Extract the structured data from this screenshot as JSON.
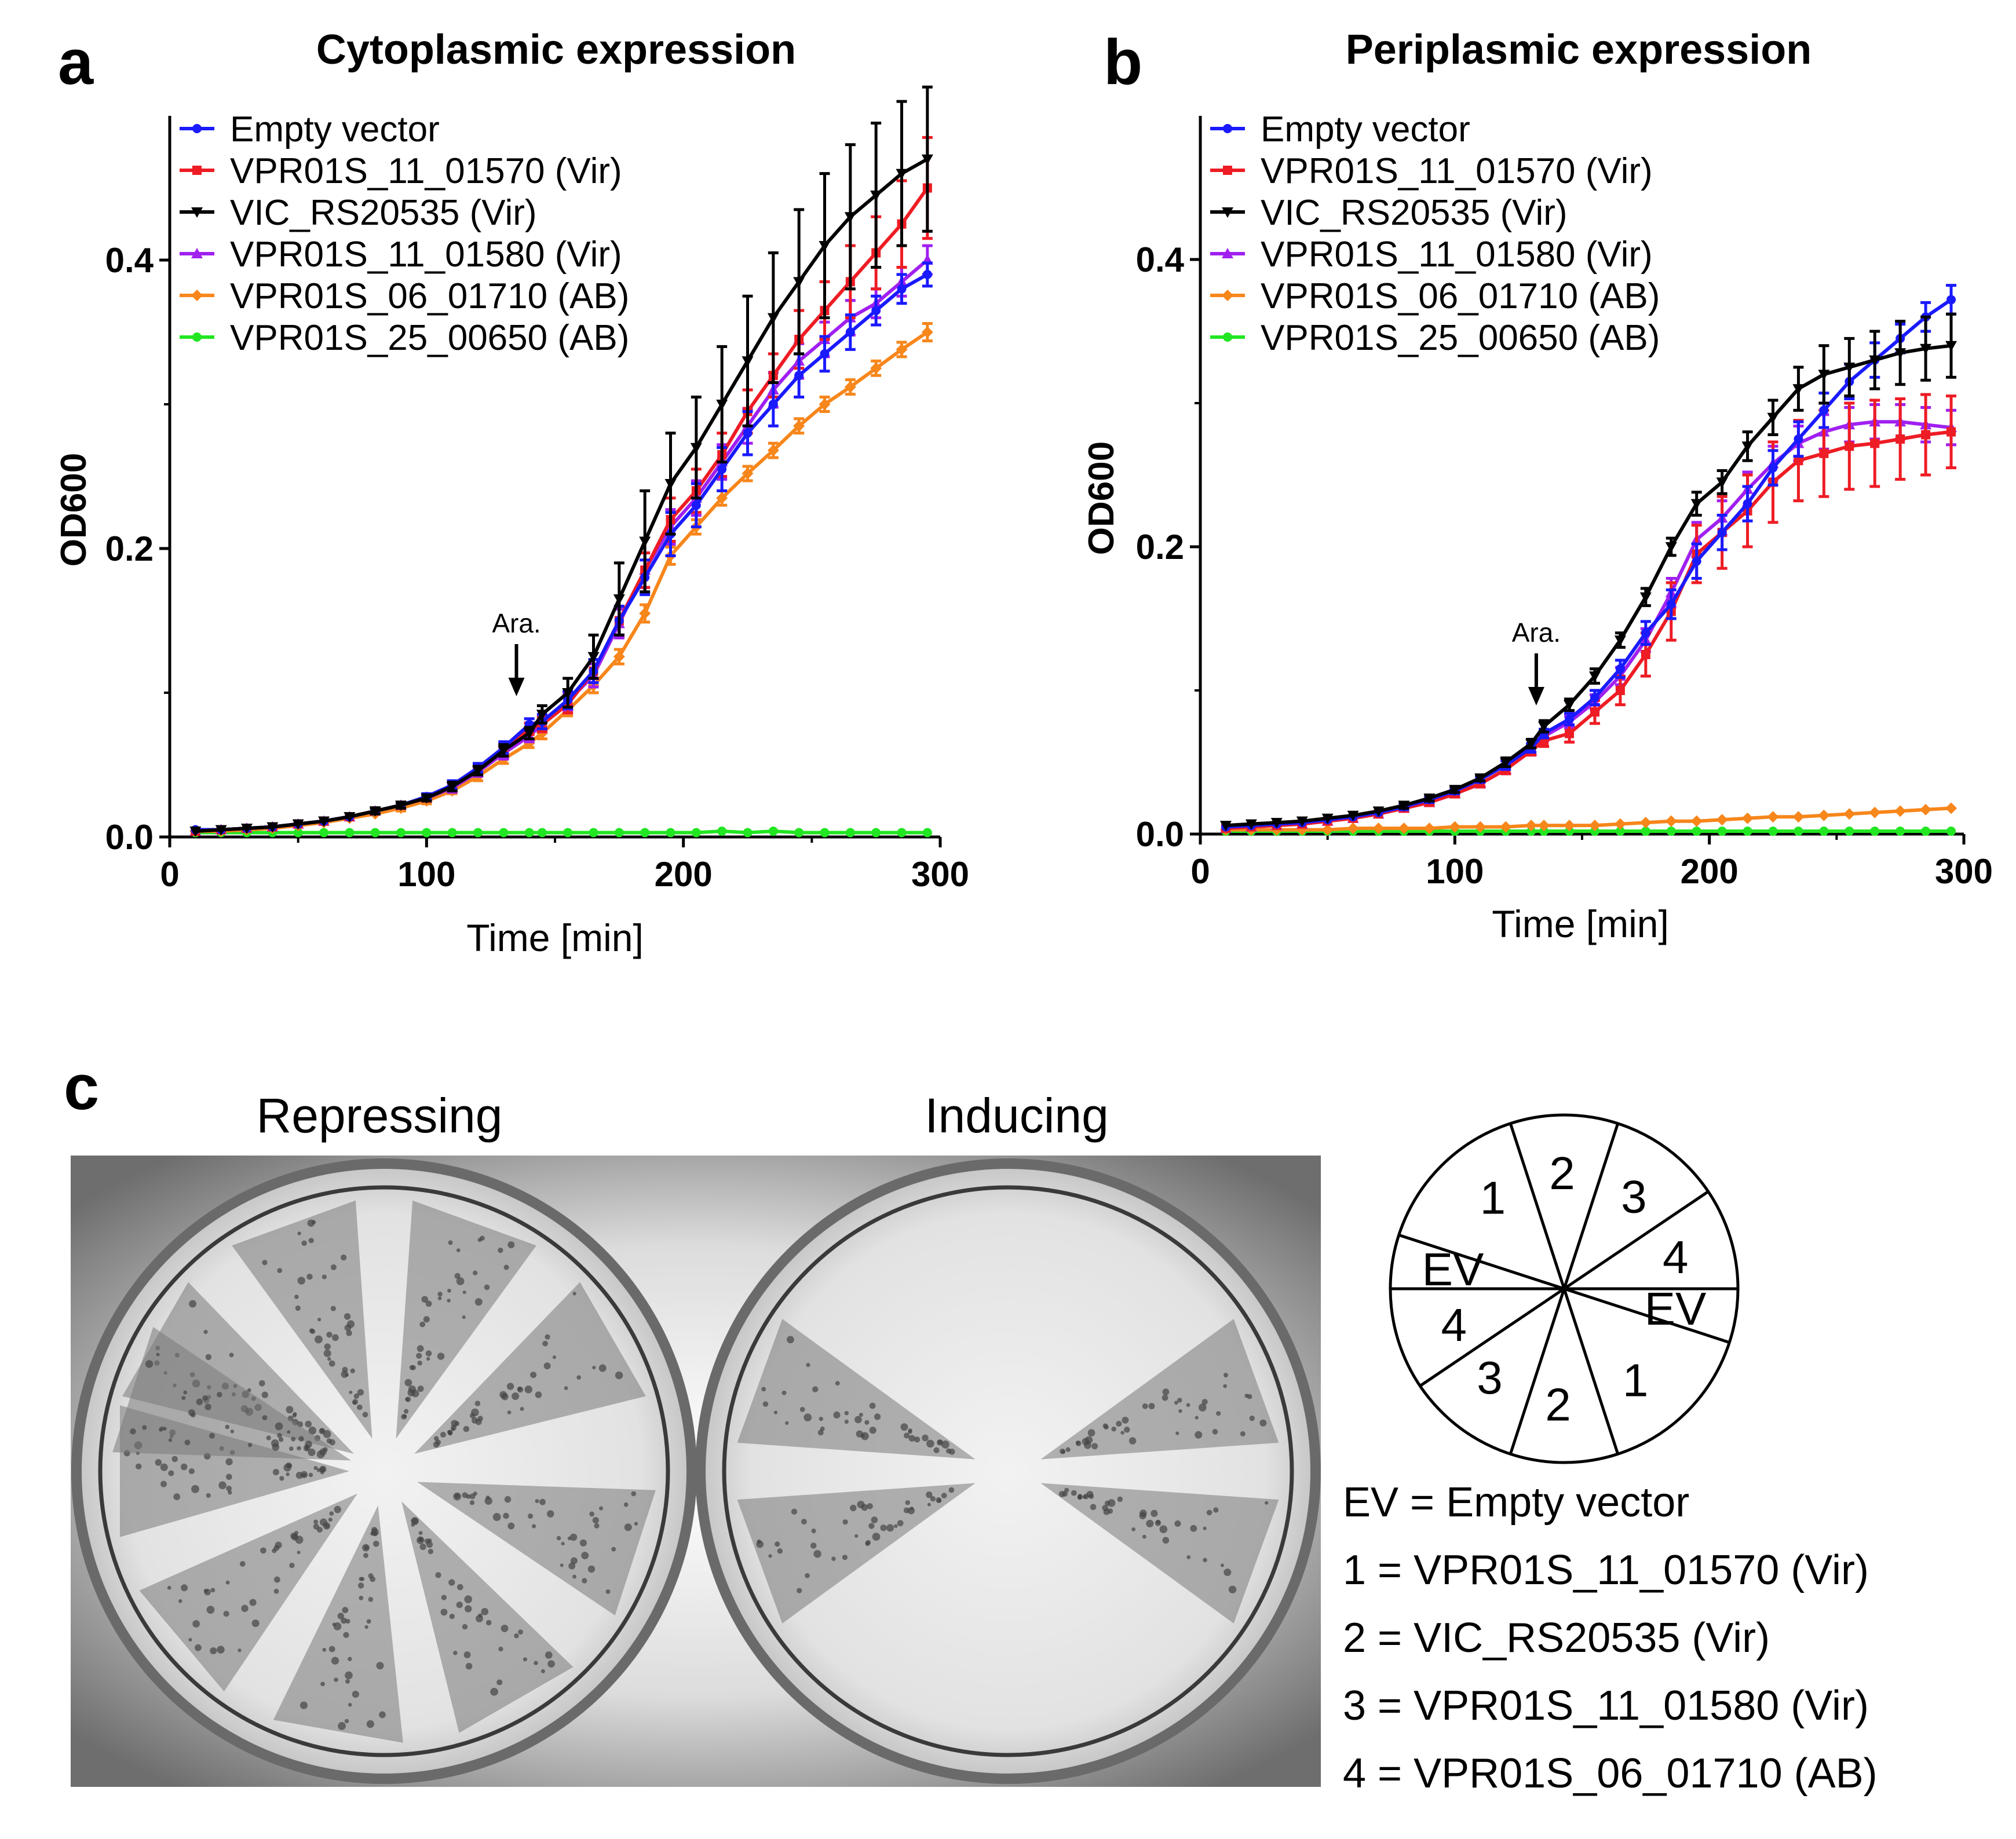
{
  "colors": {
    "Empty vector": "#1a1aff",
    "VPR01S_11_01570 (Vir)": "#ee1c24",
    "VIC_RS20535 (Vir)": "#000000",
    "VPR01S_11_01580 (Vir)": "#a020f0",
    "VPR01S_06_01710 (AB)": "#f7861b",
    "VPR01S_25_00650 (AB)": "#22e622"
  },
  "panel_c": {
    "letter": "c",
    "left_plate_title": "Repressing",
    "right_plate_title": "Inducing",
    "sector_labels": [
      "1",
      "2",
      "3",
      "4",
      "EV",
      "1",
      "2",
      "3",
      "4",
      "EV"
    ],
    "key": [
      "EV = Empty vector",
      "1 = VPR01S_11_01570 (Vir)",
      "2 = VIC_RS20535 (Vir)",
      "3 = VPR01S_11_01580 (Vir)",
      "4 = VPR01S_06_01710 (AB)"
    ]
  },
  "chart_data": [
    {
      "type": "line",
      "letter": "a",
      "title": "Cytoplasmic expression",
      "xlabel": "Time [min]",
      "ylabel": "OD600",
      "xlim": [
        0,
        300
      ],
      "ylim": [
        0,
        0.5
      ],
      "xticks": [
        "0",
        "100",
        "200",
        "300"
      ],
      "yticks": [
        "0.0",
        "0.2",
        "0.4"
      ],
      "xtick_values": [
        0,
        100,
        200,
        300
      ],
      "ytick_values": [
        0,
        0.2,
        0.4
      ],
      "legend_position": "top-left",
      "annotation": {
        "text": "Ara.",
        "x": 135
      },
      "x": [
        10,
        20,
        30,
        40,
        50,
        60,
        70,
        80,
        90,
        100,
        110,
        120,
        130,
        140,
        145,
        155,
        165,
        175,
        185,
        195,
        205,
        215,
        225,
        235,
        245,
        255,
        265,
        275,
        285,
        295
      ],
      "series": [
        {
          "name": "Empty vector",
          "values": [
            0.005,
            0.005,
            0.006,
            0.007,
            0.009,
            0.011,
            0.014,
            0.018,
            0.022,
            0.028,
            0.036,
            0.048,
            0.062,
            0.078,
            0.08,
            0.095,
            0.115,
            0.15,
            0.18,
            0.21,
            0.23,
            0.255,
            0.28,
            0.3,
            0.32,
            0.335,
            0.35,
            0.365,
            0.38,
            0.39
          ],
          "err": [
            0.001,
            0.001,
            0.001,
            0.001,
            0.001,
            0.001,
            0.001,
            0.002,
            0.002,
            0.002,
            0.003,
            0.003,
            0.004,
            0.004,
            0.005,
            0.006,
            0.008,
            0.01,
            0.012,
            0.015,
            0.015,
            0.015,
            0.015,
            0.015,
            0.015,
            0.012,
            0.012,
            0.01,
            0.01,
            0.008
          ]
        },
        {
          "name": "VPR01S_11_01570 (Vir)",
          "values": [
            0.004,
            0.005,
            0.006,
            0.007,
            0.009,
            0.011,
            0.014,
            0.018,
            0.022,
            0.027,
            0.035,
            0.046,
            0.06,
            0.075,
            0.078,
            0.092,
            0.115,
            0.15,
            0.185,
            0.22,
            0.24,
            0.265,
            0.295,
            0.32,
            0.345,
            0.365,
            0.385,
            0.405,
            0.425,
            0.45
          ],
          "err": [
            0.001,
            0.001,
            0.001,
            0.001,
            0.001,
            0.001,
            0.001,
            0.002,
            0.002,
            0.002,
            0.003,
            0.003,
            0.004,
            0.004,
            0.005,
            0.006,
            0.008,
            0.01,
            0.012,
            0.015,
            0.015,
            0.015,
            0.015,
            0.015,
            0.02,
            0.02,
            0.025,
            0.025,
            0.03,
            0.035
          ]
        },
        {
          "name": "VIC_RS20535 (Vir)",
          "values": [
            0.004,
            0.005,
            0.006,
            0.007,
            0.009,
            0.011,
            0.014,
            0.018,
            0.022,
            0.027,
            0.035,
            0.046,
            0.06,
            0.072,
            0.085,
            0.1,
            0.125,
            0.165,
            0.205,
            0.245,
            0.27,
            0.3,
            0.33,
            0.36,
            0.385,
            0.41,
            0.43,
            0.445,
            0.46,
            0.47
          ],
          "err": [
            0.001,
            0.001,
            0.001,
            0.001,
            0.001,
            0.001,
            0.001,
            0.002,
            0.002,
            0.002,
            0.003,
            0.003,
            0.004,
            0.004,
            0.006,
            0.01,
            0.015,
            0.025,
            0.035,
            0.035,
            0.035,
            0.04,
            0.045,
            0.045,
            0.05,
            0.05,
            0.05,
            0.05,
            0.05,
            0.05
          ]
        },
        {
          "name": "VPR01S_11_01580 (Vir)",
          "values": [
            0.004,
            0.005,
            0.006,
            0.007,
            0.009,
            0.011,
            0.014,
            0.018,
            0.022,
            0.027,
            0.034,
            0.045,
            0.058,
            0.07,
            0.078,
            0.094,
            0.112,
            0.148,
            0.185,
            0.215,
            0.235,
            0.26,
            0.285,
            0.31,
            0.33,
            0.345,
            0.36,
            0.37,
            0.385,
            0.4
          ],
          "err": [
            0.001,
            0.001,
            0.001,
            0.001,
            0.001,
            0.001,
            0.001,
            0.002,
            0.002,
            0.002,
            0.003,
            0.003,
            0.004,
            0.004,
            0.005,
            0.006,
            0.008,
            0.01,
            0.012,
            0.012,
            0.012,
            0.012,
            0.012,
            0.012,
            0.012,
            0.012,
            0.012,
            0.01,
            0.01,
            0.01
          ]
        },
        {
          "name": "VPR01S_06_01710 (AB)",
          "values": [
            0.004,
            0.004,
            0.005,
            0.006,
            0.008,
            0.01,
            0.013,
            0.016,
            0.02,
            0.025,
            0.032,
            0.042,
            0.054,
            0.065,
            0.072,
            0.088,
            0.105,
            0.125,
            0.155,
            0.195,
            0.215,
            0.235,
            0.252,
            0.268,
            0.285,
            0.3,
            0.312,
            0.325,
            0.338,
            0.35
          ],
          "err": [
            0.001,
            0.001,
            0.001,
            0.001,
            0.001,
            0.001,
            0.001,
            0.001,
            0.002,
            0.002,
            0.002,
            0.003,
            0.003,
            0.003,
            0.004,
            0.004,
            0.005,
            0.005,
            0.006,
            0.006,
            0.005,
            0.005,
            0.005,
            0.005,
            0.005,
            0.005,
            0.005,
            0.005,
            0.005,
            0.006
          ]
        },
        {
          "name": "VPR01S_25_00650 (AB)",
          "values": [
            0.003,
            0.003,
            0.003,
            0.003,
            0.003,
            0.003,
            0.003,
            0.003,
            0.003,
            0.003,
            0.003,
            0.003,
            0.003,
            0.003,
            0.003,
            0.003,
            0.003,
            0.003,
            0.003,
            0.003,
            0.003,
            0.004,
            0.003,
            0.004,
            0.003,
            0.003,
            0.003,
            0.003,
            0.003,
            0.003
          ],
          "err": [
            0.001,
            0.001,
            0.001,
            0.001,
            0.001,
            0.001,
            0.001,
            0.001,
            0.001,
            0.001,
            0.001,
            0.001,
            0.001,
            0.001,
            0.001,
            0.001,
            0.001,
            0.001,
            0.001,
            0.001,
            0.001,
            0.001,
            0.001,
            0.001,
            0.001,
            0.001,
            0.001,
            0.001,
            0.001,
            0.001
          ]
        }
      ]
    },
    {
      "type": "line",
      "letter": "b",
      "title": "Periplasmic expression",
      "xlabel": "Time [min]",
      "ylabel": "OD600",
      "xlim": [
        0,
        300
      ],
      "ylim": [
        0,
        0.5
      ],
      "xticks": [
        "0",
        "100",
        "200",
        "300"
      ],
      "yticks": [
        "0.0",
        "0.2",
        "0.4"
      ],
      "xtick_values": [
        0,
        100,
        200,
        300
      ],
      "ytick_values": [
        0,
        0.2,
        0.4
      ],
      "legend_position": "top-left",
      "annotation": {
        "text": "Ara.",
        "x": 132
      },
      "x": [
        10,
        20,
        30,
        40,
        50,
        60,
        70,
        80,
        90,
        100,
        110,
        120,
        130,
        135,
        145,
        155,
        165,
        175,
        185,
        195,
        205,
        215,
        225,
        235,
        245,
        255,
        265,
        275,
        285,
        295
      ],
      "series": [
        {
          "name": "Empty vector",
          "values": [
            0.005,
            0.006,
            0.007,
            0.008,
            0.01,
            0.012,
            0.015,
            0.019,
            0.024,
            0.03,
            0.038,
            0.048,
            0.06,
            0.07,
            0.08,
            0.095,
            0.115,
            0.14,
            0.16,
            0.19,
            0.21,
            0.23,
            0.255,
            0.275,
            0.295,
            0.315,
            0.33,
            0.345,
            0.36,
            0.372
          ],
          "err": [
            0.001,
            0.001,
            0.001,
            0.001,
            0.001,
            0.001,
            0.001,
            0.002,
            0.002,
            0.002,
            0.002,
            0.003,
            0.003,
            0.003,
            0.004,
            0.005,
            0.006,
            0.008,
            0.01,
            0.012,
            0.012,
            0.012,
            0.012,
            0.012,
            0.012,
            0.012,
            0.012,
            0.01,
            0.01,
            0.01
          ]
        },
        {
          "name": "VPR01S_11_01570 (Vir)",
          "values": [
            0.004,
            0.005,
            0.006,
            0.007,
            0.009,
            0.011,
            0.014,
            0.018,
            0.022,
            0.028,
            0.035,
            0.045,
            0.058,
            0.065,
            0.07,
            0.085,
            0.1,
            0.125,
            0.155,
            0.195,
            0.21,
            0.225,
            0.245,
            0.26,
            0.265,
            0.27,
            0.272,
            0.275,
            0.278,
            0.28
          ],
          "err": [
            0.001,
            0.001,
            0.001,
            0.001,
            0.001,
            0.001,
            0.001,
            0.002,
            0.002,
            0.002,
            0.002,
            0.003,
            0.003,
            0.004,
            0.006,
            0.008,
            0.01,
            0.015,
            0.02,
            0.02,
            0.025,
            0.025,
            0.028,
            0.028,
            0.03,
            0.03,
            0.03,
            0.028,
            0.028,
            0.025
          ]
        },
        {
          "name": "VIC_RS20535 (Vir)",
          "values": [
            0.006,
            0.007,
            0.008,
            0.009,
            0.011,
            0.013,
            0.016,
            0.02,
            0.025,
            0.031,
            0.039,
            0.05,
            0.063,
            0.075,
            0.09,
            0.11,
            0.135,
            0.165,
            0.2,
            0.23,
            0.245,
            0.27,
            0.29,
            0.31,
            0.32,
            0.325,
            0.33,
            0.335,
            0.338,
            0.34
          ],
          "err": [
            0.001,
            0.001,
            0.001,
            0.001,
            0.001,
            0.001,
            0.001,
            0.002,
            0.002,
            0.002,
            0.002,
            0.003,
            0.003,
            0.004,
            0.004,
            0.005,
            0.005,
            0.006,
            0.006,
            0.008,
            0.008,
            0.01,
            0.012,
            0.015,
            0.02,
            0.02,
            0.02,
            0.022,
            0.022,
            0.022
          ]
        },
        {
          "name": "VPR01S_11_01580 (Vir)",
          "values": [
            0.004,
            0.005,
            0.006,
            0.007,
            0.009,
            0.011,
            0.014,
            0.018,
            0.022,
            0.028,
            0.035,
            0.045,
            0.058,
            0.068,
            0.078,
            0.092,
            0.11,
            0.135,
            0.168,
            0.205,
            0.22,
            0.24,
            0.258,
            0.272,
            0.28,
            0.285,
            0.287,
            0.287,
            0.285,
            0.283
          ],
          "err": [
            0.001,
            0.001,
            0.001,
            0.001,
            0.001,
            0.001,
            0.001,
            0.002,
            0.002,
            0.002,
            0.002,
            0.003,
            0.003,
            0.003,
            0.004,
            0.005,
            0.006,
            0.008,
            0.01,
            0.012,
            0.012,
            0.012,
            0.012,
            0.012,
            0.012,
            0.012,
            0.012,
            0.012,
            0.012,
            0.012
          ]
        },
        {
          "name": "VPR01S_06_01710 (AB)",
          "values": [
            0.003,
            0.003,
            0.003,
            0.003,
            0.003,
            0.004,
            0.004,
            0.004,
            0.004,
            0.005,
            0.005,
            0.005,
            0.006,
            0.006,
            0.006,
            0.006,
            0.007,
            0.008,
            0.009,
            0.009,
            0.01,
            0.011,
            0.012,
            0.012,
            0.013,
            0.014,
            0.015,
            0.016,
            0.017,
            0.018
          ],
          "err": [
            0.001,
            0.001,
            0.001,
            0.001,
            0.001,
            0.001,
            0.001,
            0.001,
            0.001,
            0.001,
            0.001,
            0.001,
            0.001,
            0.001,
            0.001,
            0.001,
            0.001,
            0.001,
            0.001,
            0.001,
            0.001,
            0.001,
            0.001,
            0.001,
            0.001,
            0.001,
            0.001,
            0.001,
            0.001,
            0.001
          ]
        },
        {
          "name": "VPR01S_25_00650 (AB)",
          "values": [
            0.002,
            0.002,
            0.002,
            0.002,
            0.002,
            0.002,
            0.002,
            0.002,
            0.002,
            0.002,
            0.002,
            0.002,
            0.002,
            0.002,
            0.002,
            0.002,
            0.002,
            0.002,
            0.002,
            0.002,
            0.002,
            0.002,
            0.002,
            0.002,
            0.002,
            0.002,
            0.002,
            0.002,
            0.002,
            0.002
          ],
          "err": [
            0.001,
            0.001,
            0.001,
            0.001,
            0.001,
            0.001,
            0.001,
            0.001,
            0.001,
            0.001,
            0.001,
            0.001,
            0.001,
            0.001,
            0.001,
            0.001,
            0.001,
            0.001,
            0.001,
            0.001,
            0.001,
            0.001,
            0.001,
            0.001,
            0.001,
            0.001,
            0.001,
            0.001,
            0.001,
            0.001
          ]
        }
      ]
    }
  ]
}
